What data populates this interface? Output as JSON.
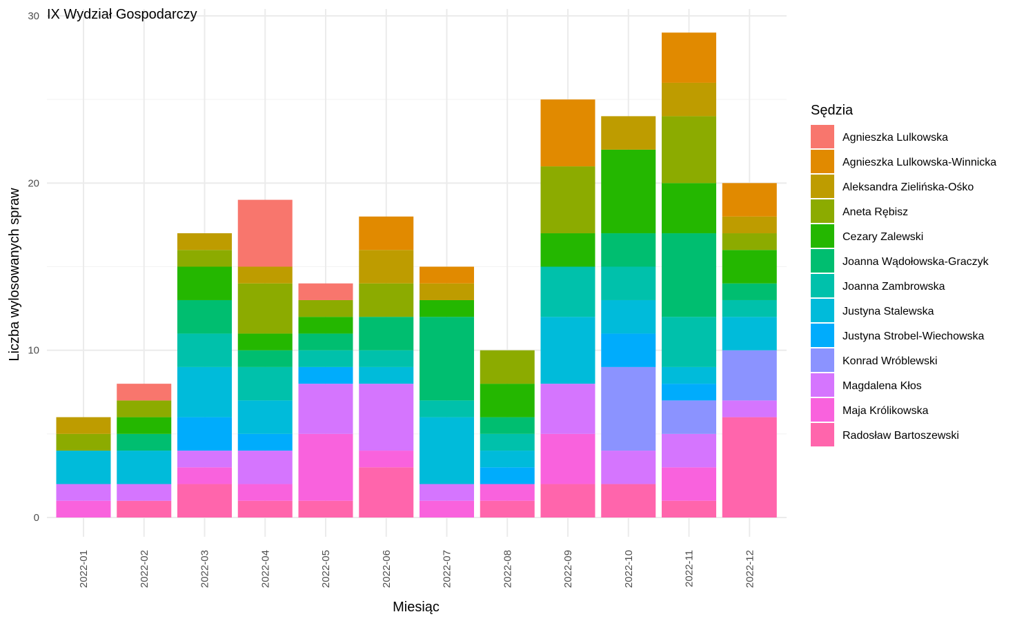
{
  "chart_data": {
    "type": "bar",
    "stacked": true,
    "title": "IX Wydział Gospodarczy",
    "xlabel": "Miesiąc",
    "ylabel": "Liczba wylosowanych spraw",
    "ylim": [
      0,
      30
    ],
    "yticks": [
      0,
      10,
      20,
      30
    ],
    "grid": true,
    "legend_title": "Sędzia",
    "legend_position": "right",
    "categories": [
      "2022-01",
      "2022-02",
      "2022-03",
      "2022-04",
      "2022-05",
      "2022-06",
      "2022-07",
      "2022-08",
      "2022-09",
      "2022-10",
      "2022-11",
      "2022-12"
    ],
    "series": [
      {
        "name": "Agnieszka Lulkowska",
        "color": "#F8766D",
        "values": [
          0,
          1,
          0,
          4,
          1,
          0,
          0,
          0,
          0,
          0,
          0,
          0
        ]
      },
      {
        "name": "Agnieszka Lulkowska-Winnicka",
        "color": "#E18A00",
        "values": [
          0,
          0,
          0,
          0,
          0,
          2,
          1,
          0,
          4,
          0,
          3,
          2
        ]
      },
      {
        "name": "Aleksandra Zielińska-Ośko",
        "color": "#BE9C00",
        "values": [
          1,
          0,
          1,
          1,
          0,
          2,
          1,
          0,
          0,
          2,
          2,
          1
        ]
      },
      {
        "name": "Aneta Rębisz",
        "color": "#8CAB00",
        "values": [
          1,
          1,
          1,
          3,
          1,
          2,
          0,
          2,
          4,
          0,
          4,
          1
        ]
      },
      {
        "name": "Cezary Zalewski",
        "color": "#24B700",
        "values": [
          0,
          1,
          2,
          1,
          1,
          0,
          1,
          2,
          2,
          5,
          3,
          2
        ]
      },
      {
        "name": "Joanna Wądołowska-Graczyk",
        "color": "#00BE70",
        "values": [
          0,
          1,
          2,
          1,
          1,
          2,
          5,
          1,
          0,
          2,
          5,
          1
        ]
      },
      {
        "name": "Joanna Zambrowska",
        "color": "#00C1AB",
        "values": [
          0,
          0,
          2,
          2,
          1,
          1,
          1,
          1,
          3,
          2,
          3,
          1
        ]
      },
      {
        "name": "Justyna Stalewska",
        "color": "#00BBDA",
        "values": [
          2,
          2,
          3,
          2,
          0,
          1,
          4,
          1,
          4,
          2,
          1,
          2
        ]
      },
      {
        "name": "Justyna Strobel-Wiechowska",
        "color": "#00ACFC",
        "values": [
          0,
          0,
          2,
          1,
          1,
          0,
          0,
          1,
          0,
          2,
          1,
          0
        ]
      },
      {
        "name": "Konrad Wróblewski",
        "color": "#8B93FF",
        "values": [
          0,
          0,
          0,
          0,
          0,
          0,
          0,
          0,
          0,
          5,
          2,
          3
        ]
      },
      {
        "name": "Magdalena Kłos",
        "color": "#D575FE",
        "values": [
          1,
          1,
          1,
          2,
          3,
          4,
          1,
          0,
          3,
          2,
          2,
          1
        ]
      },
      {
        "name": "Maja Królikowska",
        "color": "#F962DD",
        "values": [
          1,
          0,
          1,
          1,
          4,
          1,
          1,
          1,
          3,
          0,
          2,
          0
        ]
      },
      {
        "name": "Radosław Bartoszewski",
        "color": "#FF65AC",
        "values": [
          0,
          1,
          2,
          1,
          1,
          3,
          0,
          1,
          2,
          2,
          1,
          6
        ]
      }
    ]
  }
}
